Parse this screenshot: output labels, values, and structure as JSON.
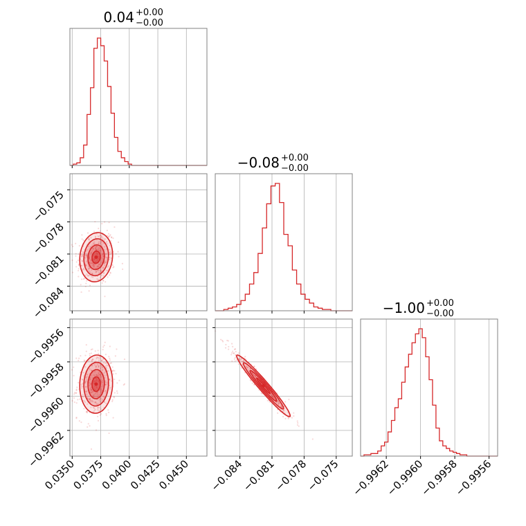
{
  "figure": {
    "accent_color": "#d62728",
    "grid": true
  },
  "chart_data": {
    "type": "corner",
    "parameters": [
      {
        "title_value": "0.04",
        "title_upper": "+0.00",
        "title_lower": "−0.00",
        "range": [
          0.0348,
          0.0468
        ],
        "ticks": [
          0.035,
          0.0375,
          0.04,
          0.0425,
          0.045
        ],
        "tick_labels": [
          "0.0350",
          "0.0375",
          "0.0400",
          "0.0425",
          "0.0450"
        ],
        "hist": {
          "bin_start": 0.0348,
          "bin_width": 0.0003,
          "counts": [
            0,
            1,
            2,
            6,
            16,
            40,
            61,
            92,
            100,
            94,
            82,
            62,
            41,
            22,
            11,
            6,
            3,
            1,
            0,
            0,
            0,
            0,
            0,
            0,
            0,
            0,
            0,
            0,
            0,
            0,
            0,
            0,
            0,
            0,
            0,
            0,
            0,
            0,
            0,
            0
          ]
        }
      },
      {
        "title_value": "−0.08",
        "title_upper": "+0.00",
        "title_lower": "−0.00",
        "range": [
          -0.0863,
          -0.0735
        ],
        "ticks": [
          -0.084,
          -0.081,
          -0.078,
          -0.075
        ],
        "tick_labels": [
          "−0.084",
          "−0.081",
          "−0.078",
          "−0.075"
        ],
        "hist": {
          "bin_start": -0.0863,
          "bin_width": 0.0004,
          "counts": [
            0,
            0,
            1,
            2,
            3,
            5,
            8,
            13,
            21,
            30,
            45,
            65,
            84,
            98,
            100,
            85,
            60,
            51,
            32,
            21,
            13,
            9,
            6,
            3,
            2,
            1,
            1,
            0,
            0,
            0,
            0,
            0
          ]
        }
      },
      {
        "title_value": "−1.00",
        "title_upper": "+0.00",
        "title_lower": "−0.00",
        "range": [
          -0.99635,
          -0.99555
        ],
        "ticks": [
          -0.9962,
          -0.996,
          -0.9958,
          -0.9956
        ],
        "tick_labels": [
          "−0.9962",
          "−0.9960",
          "−0.9958",
          "−0.9956"
        ],
        "hist": {
          "bin_start": -0.99635,
          "bin_width": 2e-05,
          "counts": [
            0,
            1,
            1,
            2,
            2,
            4,
            8,
            11,
            19,
            28,
            38,
            45,
            58,
            70,
            80,
            89,
            96,
            100,
            93,
            78,
            60,
            40,
            22,
            12,
            8,
            6,
            4,
            3,
            2,
            1,
            1,
            0,
            0,
            0,
            0,
            0,
            0,
            0,
            0,
            0
          ]
        }
      }
    ],
    "pairs": [
      {
        "x_param": 0,
        "y_param": 1,
        "center": [
          0.0371,
          -0.0813
        ],
        "sd": [
          0.00072,
          0.00115
        ],
        "corr": 0.1,
        "contour_levels_sigma": [
          0.5,
          1.0,
          1.5,
          2.0
        ]
      },
      {
        "x_param": 0,
        "y_param": 2,
        "center": [
          0.0371,
          -0.99593
        ],
        "sd": [
          0.00072,
          8.5e-05
        ],
        "corr": 0.05,
        "contour_levels_sigma": [
          0.5,
          1.0,
          1.5,
          2.0
        ]
      },
      {
        "x_param": 1,
        "y_param": 2,
        "center": [
          -0.0818,
          -0.99594
        ],
        "sd": [
          0.00125,
          9e-05
        ],
        "corr": -0.97,
        "contour_levels_sigma": [
          0.5,
          1.0,
          1.5,
          2.0
        ]
      }
    ]
  }
}
